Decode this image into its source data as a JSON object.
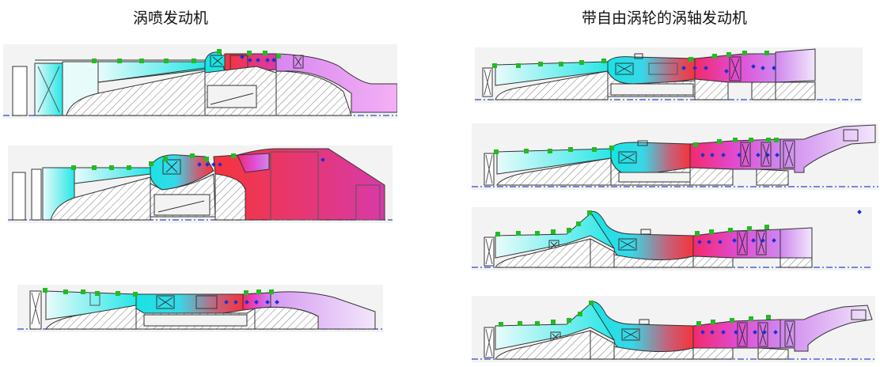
{
  "titles": {
    "turbojet": "涡喷发动机",
    "turboshaft": "带自由涡轮的涡轴发动机"
  },
  "colors": {
    "cold": "#00e5e5",
    "hot": "#f5434b",
    "exhaust": "#d79cf5",
    "station_marker": "#22bb22",
    "probe_marker": "#1a2fd6",
    "axis_line": "#3344cc",
    "hatch": "#666666",
    "panel_bg": "#f3f3f3"
  },
  "panels": [
    {
      "id": "turbojet-1",
      "group": "turbojet"
    },
    {
      "id": "turbojet-2",
      "group": "turbojet"
    },
    {
      "id": "turbojet-3",
      "group": "turbojet"
    },
    {
      "id": "turboshaft-1",
      "group": "turboshaft"
    },
    {
      "id": "turboshaft-2",
      "group": "turboshaft"
    },
    {
      "id": "turboshaft-3",
      "group": "turboshaft"
    },
    {
      "id": "turboshaft-4",
      "group": "turboshaft"
    }
  ]
}
